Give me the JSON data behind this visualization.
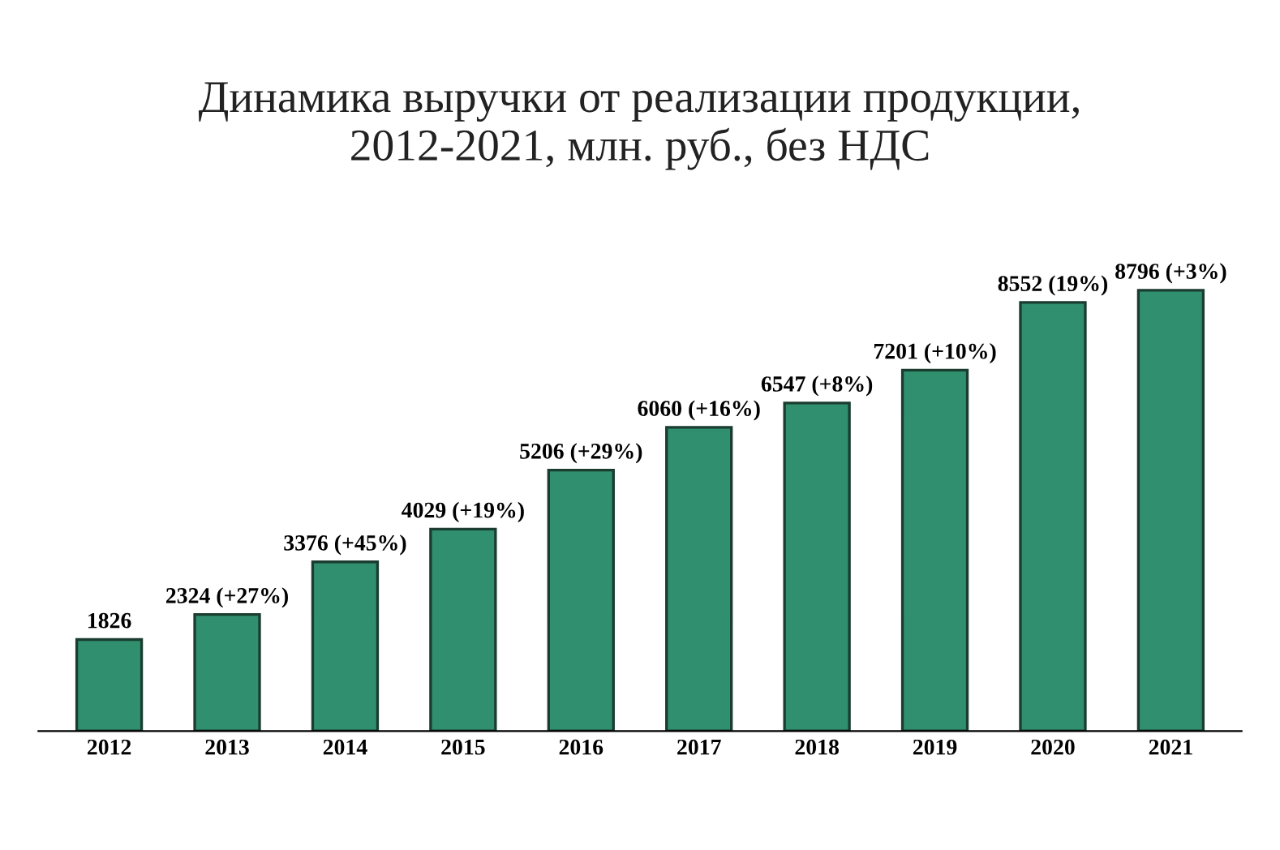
{
  "chart_data": {
    "type": "bar",
    "title": "Динамика выручки от реализации продукции,\n2012-2021, млн. руб., без НДС",
    "categories": [
      "2012",
      "2013",
      "2014",
      "2015",
      "2016",
      "2017",
      "2018",
      "2019",
      "2020",
      "2021"
    ],
    "values": [
      1826,
      2324,
      3376,
      4029,
      5206,
      6060,
      6547,
      7201,
      8552,
      8796
    ],
    "value_labels": [
      "1826",
      "2324 (+27%)",
      "3376 (+45%)",
      "4029 (+19%)",
      "5206 (+29%)",
      "6060 (+16%)",
      "6547 (+8%)",
      "7201 (+10%)",
      "8552 (19%)",
      "8796 (+3%)"
    ],
    "color": "#2f8f6e",
    "tick_labels": "x",
    "grid": false,
    "legend": false
  }
}
